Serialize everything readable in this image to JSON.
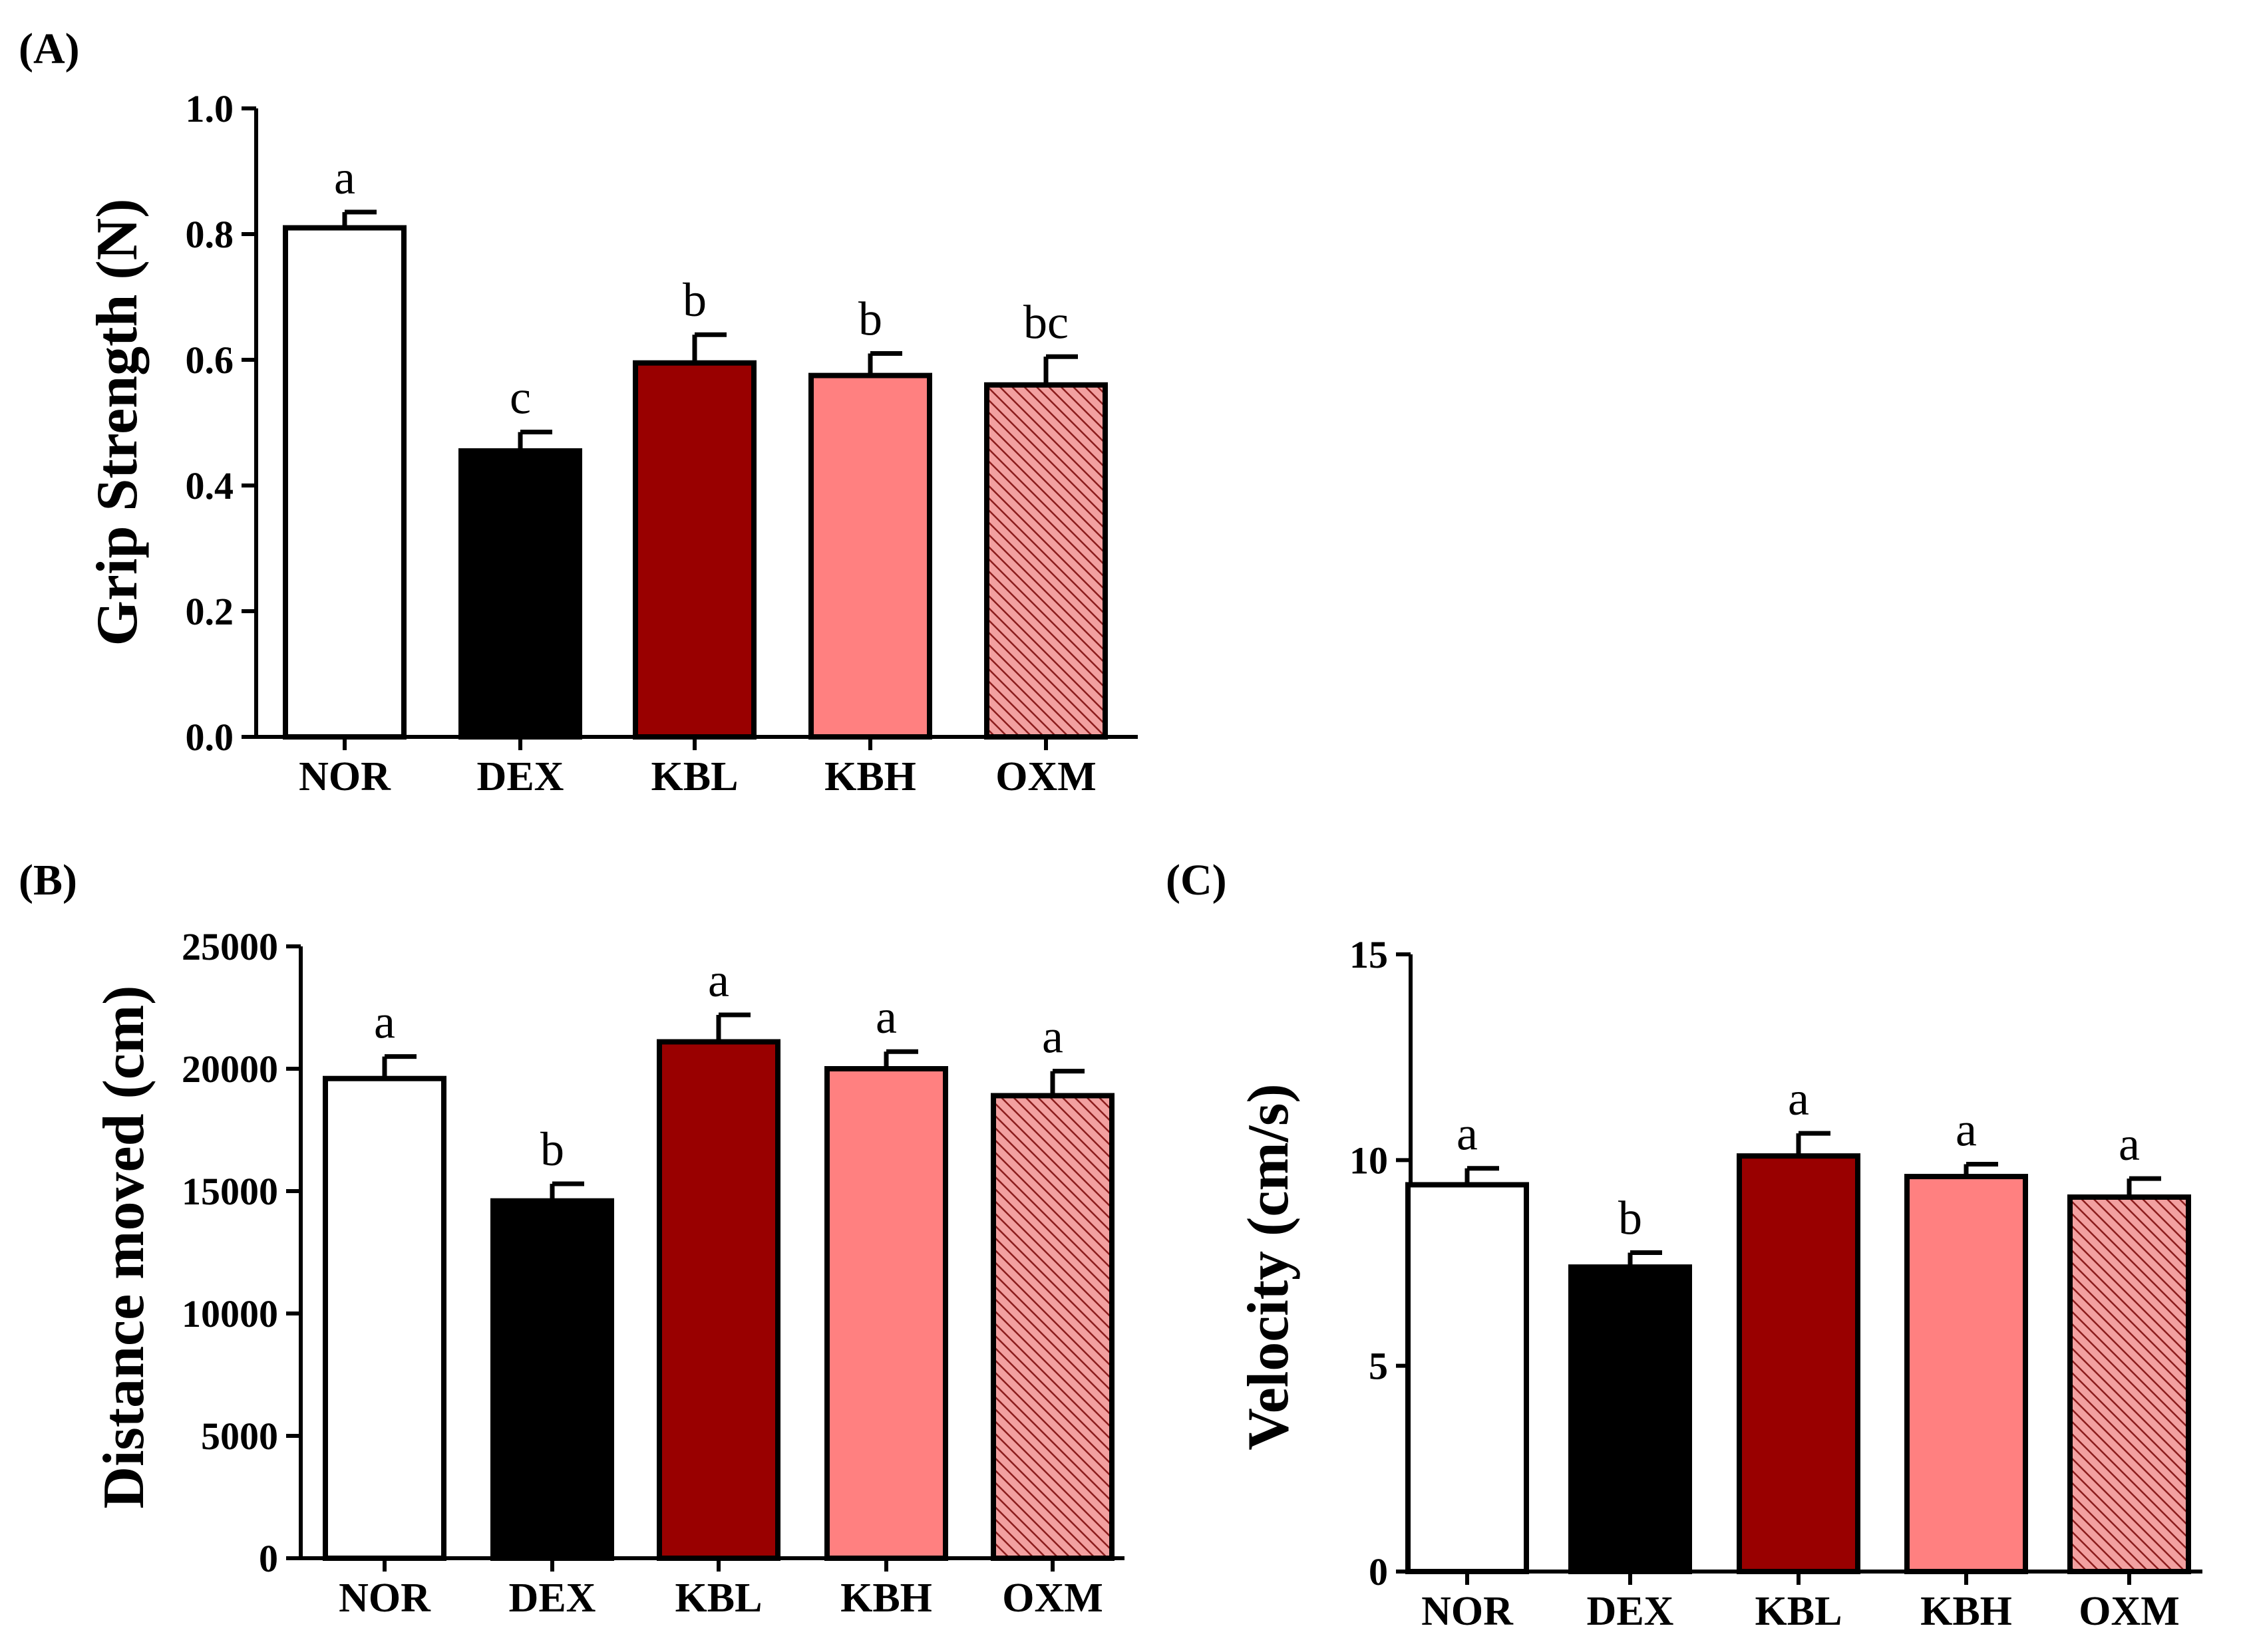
{
  "colors": {
    "NOR": "#ffffff",
    "DEX": "#000000",
    "KBL": "#990000",
    "KBH": "#ff8080",
    "OXM_base": "#f2a0a0",
    "OXM_hatch": "#8b1c1c",
    "stroke": "#000000"
  },
  "chart_data": [
    {
      "type": "bar",
      "panel_label": "(A)",
      "title": "",
      "xlabel": "",
      "ylabel": "Grip Strength (N)",
      "categories": [
        "NOR",
        "DEX",
        "KBL",
        "KBH",
        "OXM"
      ],
      "values": [
        0.81,
        0.455,
        0.595,
        0.575,
        0.56
      ],
      "errors": [
        0.025,
        0.03,
        0.045,
        0.035,
        0.045
      ],
      "significance": [
        "a",
        "c",
        "b",
        "b",
        "bc"
      ],
      "ylim": [
        0,
        1.0
      ],
      "yticks": [
        0.0,
        0.2,
        0.4,
        0.6,
        0.8,
        1.0
      ],
      "ytick_labels": [
        "0.0",
        "0.2",
        "0.4",
        "0.6",
        "0.8",
        "1.0"
      ],
      "grid": false
    },
    {
      "type": "bar",
      "panel_label": "(B)",
      "title": "",
      "xlabel": "",
      "ylabel": "Distance moved (cm)",
      "categories": [
        "NOR",
        "DEX",
        "KBL",
        "KBH",
        "OXM"
      ],
      "values": [
        19600,
        14600,
        21100,
        20000,
        18900
      ],
      "errors": [
        900,
        700,
        1100,
        700,
        1000
      ],
      "significance": [
        "a",
        "b",
        "a",
        "a",
        "a"
      ],
      "ylim": [
        0,
        25000
      ],
      "yticks": [
        0,
        5000,
        10000,
        15000,
        20000,
        25000
      ],
      "ytick_labels": [
        "0",
        "5000",
        "10000",
        "15000",
        "20000",
        "25000"
      ],
      "grid": false
    },
    {
      "type": "bar",
      "panel_label": "(C)",
      "title": "",
      "xlabel": "",
      "ylabel": "Velocity (cm/s)",
      "categories": [
        "NOR",
        "DEX",
        "KBL",
        "KBH",
        "OXM"
      ],
      "values": [
        9.4,
        7.4,
        10.1,
        9.6,
        9.1
      ],
      "errors": [
        0.4,
        0.35,
        0.55,
        0.3,
        0.45
      ],
      "significance": [
        "a",
        "b",
        "a",
        "a",
        "a"
      ],
      "ylim": [
        0,
        15
      ],
      "yticks": [
        0,
        5,
        10,
        15
      ],
      "ytick_labels": [
        "0",
        "5",
        "10",
        "15"
      ],
      "grid": false
    }
  ]
}
